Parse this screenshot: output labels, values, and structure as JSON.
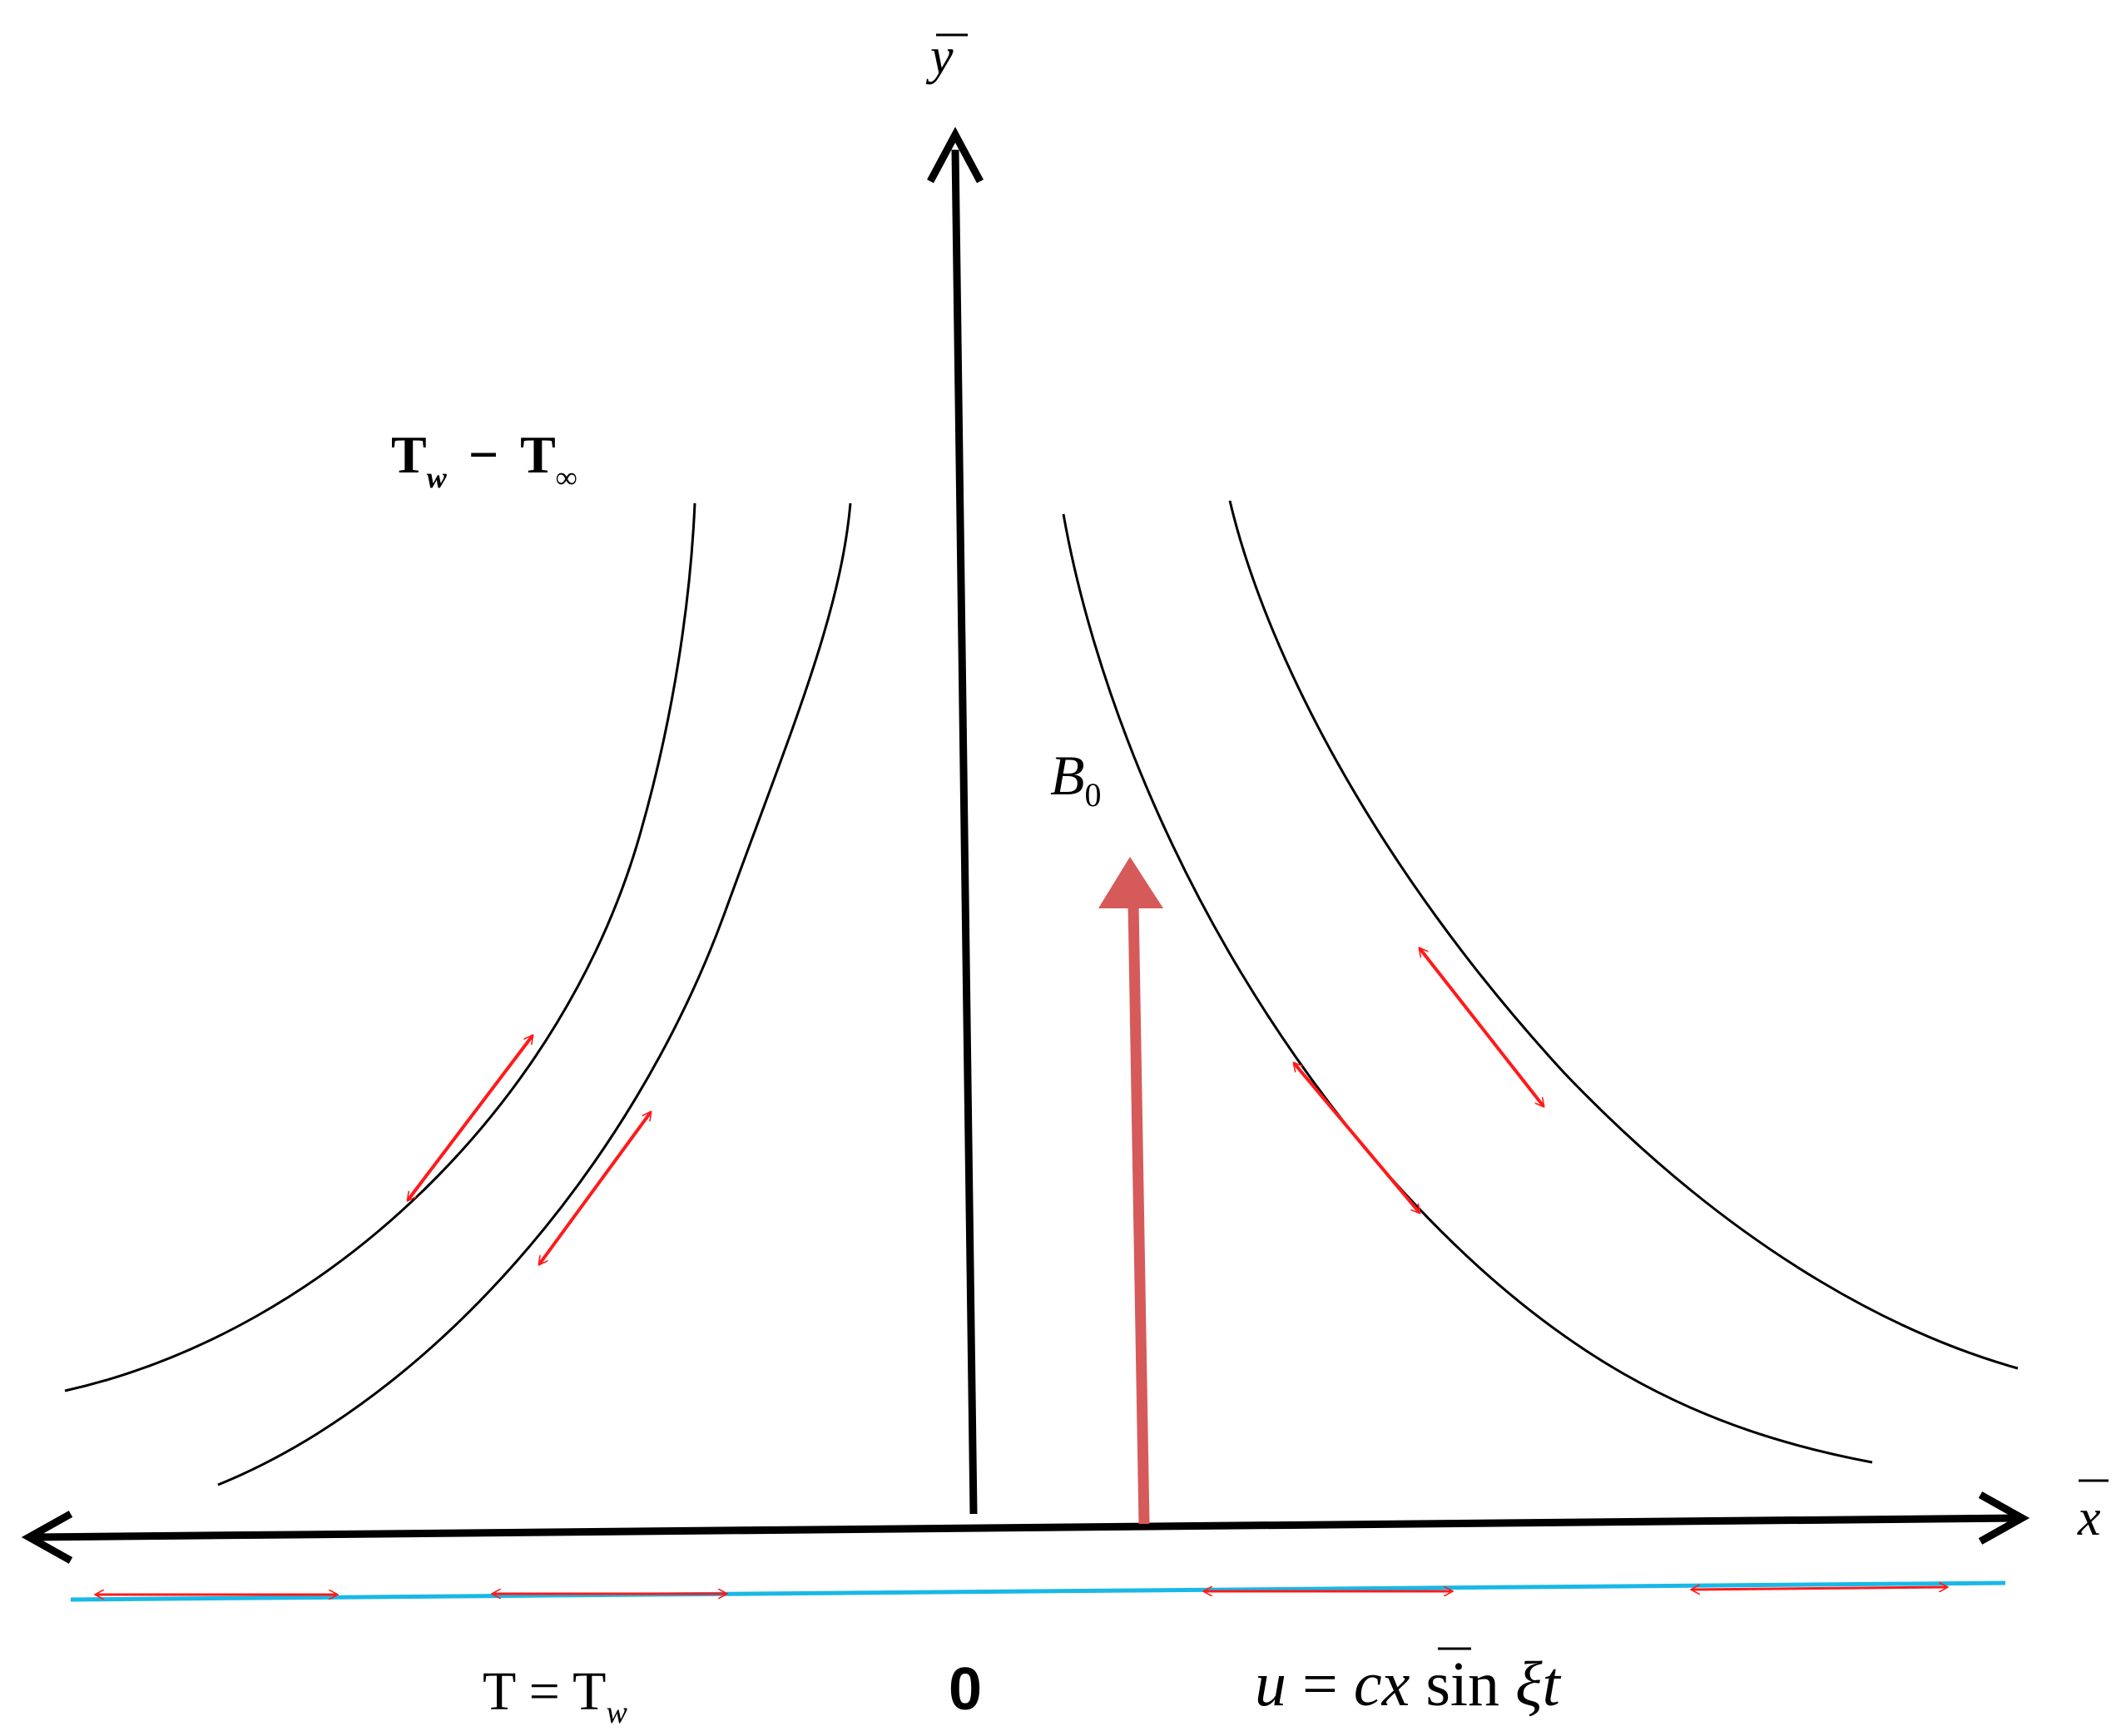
{
  "axes": {
    "y_label": "y",
    "x_label": "x",
    "origin_label": "0"
  },
  "field": {
    "label_main": "B",
    "label_sub": "0"
  },
  "temperature": {
    "diff_left": "T",
    "diff_left_sub": "w",
    "diff_op": "−",
    "diff_right": "T",
    "diff_right_sub": "∞"
  },
  "wall_condition": {
    "lhs": "T = T",
    "sub": "w"
  },
  "velocity": {
    "u": "u",
    "eq": " = ",
    "c": "c",
    "x": "x",
    "sin": " sin ",
    "xi": "ξ",
    "t": "t"
  },
  "colors": {
    "axis": "#000000",
    "field_arrow": "#d65a5a",
    "stretch_arrows": "#ff1a1a",
    "sheet_line": "#19b8e6",
    "streamlines": "#000000"
  }
}
